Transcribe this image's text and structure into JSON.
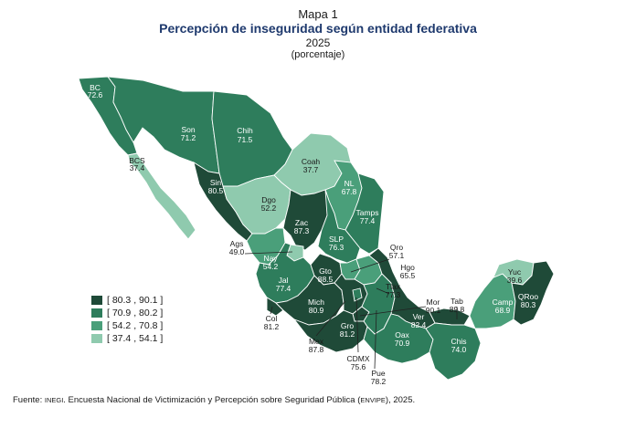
{
  "header": {
    "map_number": "Mapa 1",
    "title": "Percepción de inseguridad según entidad federativa",
    "year": "2025",
    "unit": "(porcentaje)"
  },
  "legend": [
    {
      "label": "[ 80.3 , 90.1 ]",
      "color": "#1f4a38"
    },
    {
      "label": "[ 70.9 , 80.2 ]",
      "color": "#2e7d5c"
    },
    {
      "label": "[ 54.2 , 70.8 ]",
      "color": "#4a9f7a"
    },
    {
      "label": "[ 37.4 , 54.1 ]",
      "color": "#8fcaae"
    }
  ],
  "states": [
    {
      "abbr": "BC",
      "value": "72.6",
      "class": 1
    },
    {
      "abbr": "BCS",
      "value": "37.4",
      "class": 3
    },
    {
      "abbr": "Son",
      "value": "71.2",
      "class": 1
    },
    {
      "abbr": "Chih",
      "value": "71.5",
      "class": 1
    },
    {
      "abbr": "Coah",
      "value": "37.7",
      "class": 3
    },
    {
      "abbr": "NL",
      "value": "67.8",
      "class": 2
    },
    {
      "abbr": "Tamps",
      "value": "77.4",
      "class": 1
    },
    {
      "abbr": "Sin",
      "value": "80.5",
      "class": 0
    },
    {
      "abbr": "Dgo",
      "value": "52.2",
      "class": 3
    },
    {
      "abbr": "Zac",
      "value": "87.3",
      "class": 0
    },
    {
      "abbr": "SLP",
      "value": "76.3",
      "class": 1
    },
    {
      "abbr": "Ags",
      "value": "49.0",
      "class": 3
    },
    {
      "abbr": "Nay",
      "value": "54.2",
      "class": 2
    },
    {
      "abbr": "Jal",
      "value": "77.4",
      "class": 1
    },
    {
      "abbr": "Gto",
      "value": "88.5",
      "class": 0
    },
    {
      "abbr": "Qro",
      "value": "57.1",
      "class": 2
    },
    {
      "abbr": "Hgo",
      "value": "65.5",
      "class": 2
    },
    {
      "abbr": "Tlax",
      "value": "77.3",
      "class": 1
    },
    {
      "abbr": "Mich",
      "value": "80.9",
      "class": 0
    },
    {
      "abbr": "Col",
      "value": "81.2",
      "class": 0
    },
    {
      "abbr": "Mex",
      "value": "87.8",
      "class": 0
    },
    {
      "abbr": "CDMX",
      "value": "75.6",
      "class": 1
    },
    {
      "abbr": "Gro",
      "value": "81.2",
      "class": 0
    },
    {
      "abbr": "Mor",
      "value": "90.1",
      "class": 0
    },
    {
      "abbr": "Pue",
      "value": "78.2",
      "class": 1
    },
    {
      "abbr": "Ver",
      "value": "82.4",
      "class": 0
    },
    {
      "abbr": "Oax",
      "value": "70.9",
      "class": 1
    },
    {
      "abbr": "Tab",
      "value": "89.8",
      "class": 0
    },
    {
      "abbr": "Chis",
      "value": "74.0",
      "class": 1
    },
    {
      "abbr": "Camp",
      "value": "68.9",
      "class": 2
    },
    {
      "abbr": "Yuc",
      "value": "39.6",
      "class": 3
    },
    {
      "abbr": "QRoo",
      "value": "80.3",
      "class": 0
    }
  ],
  "footer": {
    "prefix": "Fuente: ",
    "inegi": "INEGI",
    "text": ". Encuesta Nacional de Victimización y Percepción sobre Seguridad Pública (",
    "envipe": "ENVIPE",
    "suffix": "), 2025."
  }
}
